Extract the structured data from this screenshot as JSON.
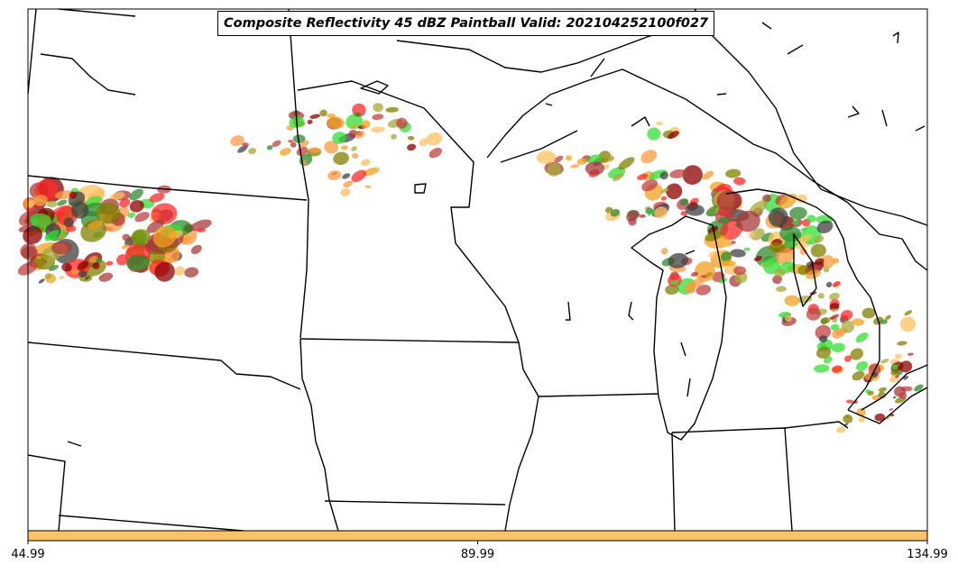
{
  "title": "Composite Reflectivity 45 dBZ Paintball Valid: 202104252100f027",
  "colorbar": {
    "color": "#ffc266",
    "tick_labels": [
      "44.99",
      "89.99",
      "134.99"
    ]
  },
  "map": {
    "region": "Upper Midwest / Great Lakes",
    "projection": "lambert-conformal",
    "boundaries": [
      "state-borders",
      "coastlines",
      "lakes"
    ],
    "paintball_colors": [
      "#ff2a2a",
      "#a83a3a",
      "#ff9a40",
      "#f0a020",
      "#ffc060",
      "#2e8b2e",
      "#33dd33",
      "#a8a838",
      "#808000",
      "#8b0000",
      "#404040",
      "#c04040"
    ]
  }
}
